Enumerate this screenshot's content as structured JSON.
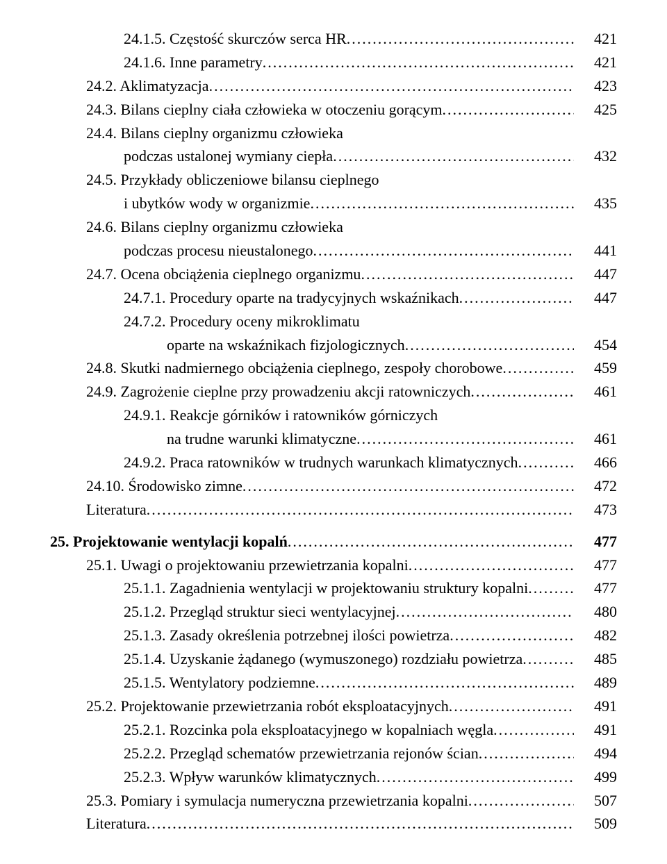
{
  "entries": [
    {
      "id": "24-1-5",
      "level": 2,
      "text": "24.1.5. Częstość skurczów serca HR",
      "page": "421",
      "bold": false
    },
    {
      "id": "24-1-6",
      "level": 2,
      "text": "24.1.6. Inne parametry",
      "page": "421",
      "bold": false
    },
    {
      "id": "24-2",
      "level": 1,
      "text": "24.2. Aklimatyzacja",
      "page": "423",
      "bold": false
    },
    {
      "id": "24-3",
      "level": 1,
      "text": "24.3. Bilans cieplny ciała człowieka w otoczeniu gorącym",
      "page": "425",
      "bold": false
    },
    {
      "id": "24-4a",
      "level": 1,
      "text": "24.4. Bilans cieplny organizmu człowieka",
      "bold": false,
      "noPage": true,
      "noDots": true
    },
    {
      "id": "24-4b",
      "level": 1,
      "contLevel": "cont-1",
      "text": "podczas ustalonej wymiany ciepła",
      "page": "432",
      "bold": false
    },
    {
      "id": "24-5a",
      "level": 1,
      "text": "24.5. Przykłady obliczeniowe bilansu cieplnego",
      "bold": false,
      "noPage": true,
      "noDots": true
    },
    {
      "id": "24-5b",
      "level": 1,
      "contLevel": "cont-1",
      "text": "i ubytków wody w organizmie",
      "page": "435",
      "bold": false
    },
    {
      "id": "24-6a",
      "level": 1,
      "text": "24.6. Bilans cieplny organizmu człowieka",
      "bold": false,
      "noPage": true,
      "noDots": true
    },
    {
      "id": "24-6b",
      "level": 1,
      "contLevel": "cont-1",
      "text": "podczas procesu nieustalonego",
      "page": "441",
      "bold": false
    },
    {
      "id": "24-7",
      "level": 1,
      "text": "24.7. Ocena obciążenia cieplnego organizmu",
      "page": "447",
      "bold": false
    },
    {
      "id": "24-7-1",
      "level": 2,
      "text": "24.7.1. Procedury oparte na tradycyjnych wskaźnikach",
      "page": "447",
      "bold": false
    },
    {
      "id": "24-7-2a",
      "level": 2,
      "text": "24.7.2. Procedury oceny mikroklimatu",
      "bold": false,
      "noPage": true,
      "noDots": true
    },
    {
      "id": "24-7-2b",
      "level": 2,
      "contLevel": "cont-2",
      "text": "oparte na wskaźnikach fizjologicznych",
      "page": "454",
      "bold": false
    },
    {
      "id": "24-8",
      "level": 1,
      "text": "24.8. Skutki nadmiernego obciążenia cieplnego, zespoły chorobowe",
      "page": "459",
      "bold": false
    },
    {
      "id": "24-9",
      "level": 1,
      "text": "24.9. Zagrożenie cieplne przy prowadzeniu akcji ratowniczych",
      "page": "461",
      "bold": false
    },
    {
      "id": "24-9-1a",
      "level": 2,
      "text": "24.9.1. Reakcje górników i ratowników górniczych",
      "bold": false,
      "noPage": true,
      "noDots": true
    },
    {
      "id": "24-9-1b",
      "level": 2,
      "contLevel": "cont-2",
      "text": "na trudne warunki klimatyczne",
      "page": "461",
      "bold": false
    },
    {
      "id": "24-9-2",
      "level": 2,
      "text": "24.9.2. Praca ratowników w trudnych warunkach klimatycznych",
      "page": "466",
      "bold": false
    },
    {
      "id": "24-10",
      "level": 1,
      "text": "24.10. Środowisko zimne",
      "page": "472",
      "bold": false
    },
    {
      "id": "lit-24",
      "level": 1,
      "text": "Literatura",
      "page": "473",
      "bold": false
    },
    {
      "id": "25",
      "level": 0,
      "text": "25. Projektowanie wentylacji kopalń",
      "page": "477",
      "bold": true,
      "gapBefore": true
    },
    {
      "id": "25-1",
      "level": 1,
      "text": "25.1. Uwagi o projektowaniu przewietrzania kopalni",
      "page": "477",
      "bold": false
    },
    {
      "id": "25-1-1",
      "level": 2,
      "text": "25.1.1. Zagadnienia wentylacji w projektowaniu struktury kopalni",
      "page": "477",
      "bold": false
    },
    {
      "id": "25-1-2",
      "level": 2,
      "text": "25.1.2. Przegląd struktur sieci wentylacyjnej",
      "page": "480",
      "bold": false
    },
    {
      "id": "25-1-3",
      "level": 2,
      "text": "25.1.3. Zasady określenia potrzebnej ilości powietrza",
      "page": "482",
      "bold": false
    },
    {
      "id": "25-1-4",
      "level": 2,
      "text": "25.1.4. Uzyskanie żądanego (wymuszonego) rozdziału powietrza",
      "page": "485",
      "bold": false
    },
    {
      "id": "25-1-5",
      "level": 2,
      "text": "25.1.5. Wentylatory podziemne",
      "page": "489",
      "bold": false
    },
    {
      "id": "25-2",
      "level": 1,
      "text": "25.2. Projektowanie przewietrzania robót eksploatacyjnych",
      "page": "491",
      "bold": false
    },
    {
      "id": "25-2-1",
      "level": 2,
      "text": "25.2.1. Rozcinka pola eksploatacyjnego w kopalniach węgla",
      "page": "491",
      "bold": false
    },
    {
      "id": "25-2-2",
      "level": 2,
      "text": "25.2.2. Przegląd schematów przewietrzania rejonów ścian",
      "page": "494",
      "bold": false
    },
    {
      "id": "25-2-3",
      "level": 2,
      "text": "25.2.3. Wpływ warunków klimatycznych",
      "page": "499",
      "bold": false
    },
    {
      "id": "25-3",
      "level": 1,
      "text": "25.3. Pomiary i symulacja numeryczna przewietrzania kopalni",
      "page": "507",
      "bold": false
    },
    {
      "id": "lit-25",
      "level": 1,
      "text": "Literatura",
      "page": "509",
      "bold": false
    }
  ]
}
